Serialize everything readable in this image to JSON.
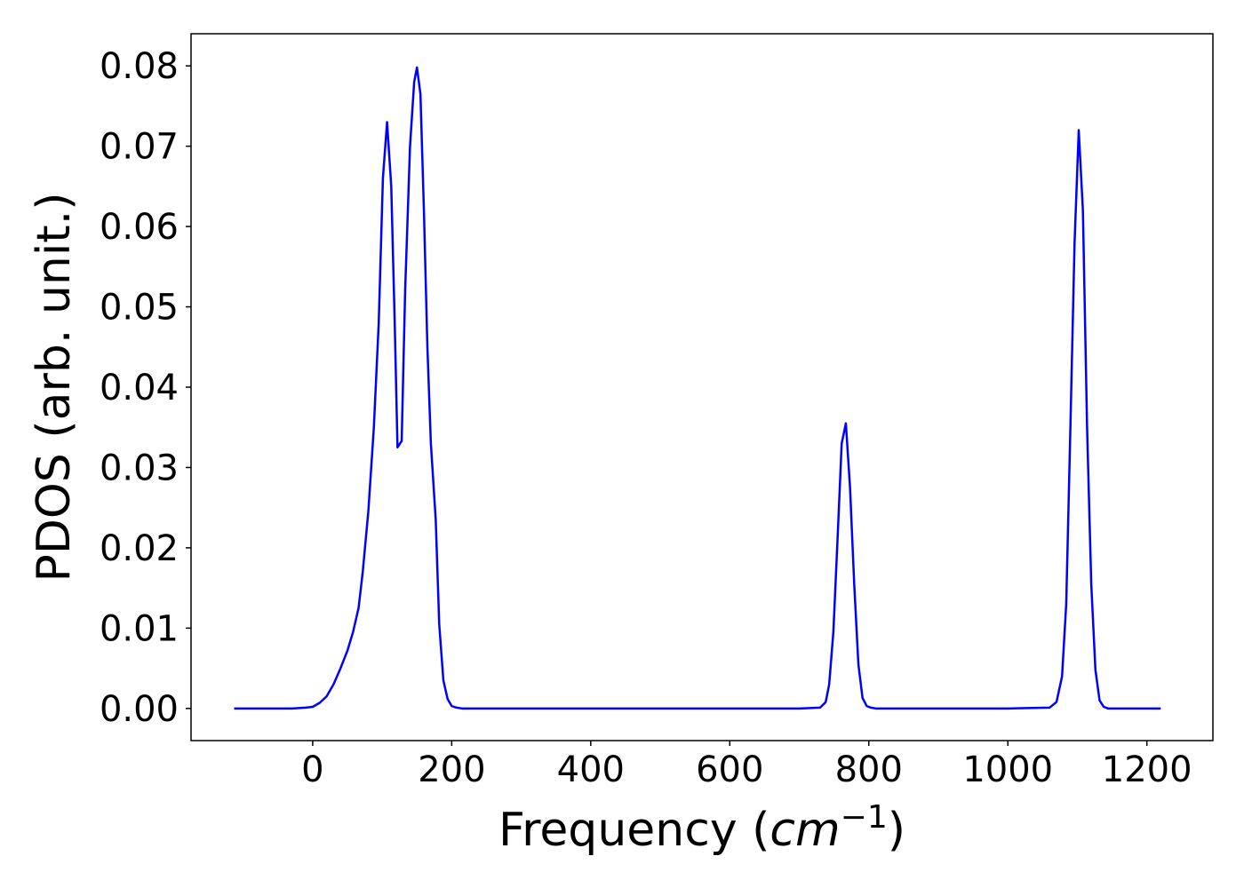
{
  "chart_data": {
    "type": "line",
    "title": "",
    "xlabel": "Frequency (cm⁻¹)",
    "xlabel_parts": {
      "prefix": "Frequency (",
      "unit": "cm",
      "exponent": "−1",
      "suffix": ")"
    },
    "ylabel": "PDOS (arb. unit.)",
    "xlim": [
      -175,
      1295
    ],
    "ylim": [
      -0.004,
      0.084
    ],
    "xticks": [
      0,
      200,
      400,
      600,
      800,
      1000,
      1200
    ],
    "xtick_labels": [
      "0",
      "200",
      "400",
      "600",
      "800",
      "1000",
      "1200"
    ],
    "yticks": [
      0.0,
      0.01,
      0.02,
      0.03,
      0.04,
      0.05,
      0.06,
      0.07,
      0.08
    ],
    "ytick_labels": [
      "0.00",
      "0.01",
      "0.02",
      "0.03",
      "0.04",
      "0.05",
      "0.06",
      "0.07",
      "0.08"
    ],
    "grid": false,
    "series": [
      {
        "color": "#0000ff",
        "x": [
          -113,
          -90,
          -60,
          -30,
          -10,
          0,
          10,
          20,
          30,
          40,
          50,
          58,
          66,
          72,
          80,
          88,
          95,
          101,
          107,
          113,
          118,
          122,
          128,
          133,
          140,
          146,
          150,
          155,
          160,
          165,
          170,
          177,
          182,
          188,
          194,
          200,
          207,
          215,
          230,
          300,
          400,
          500,
          600,
          700,
          730,
          738,
          743,
          749,
          755,
          761,
          767,
          773,
          779,
          785,
          791,
          797,
          803,
          810,
          820,
          850,
          900,
          1000,
          1060,
          1070,
          1078,
          1084,
          1090,
          1096,
          1102,
          1108,
          1114,
          1120,
          1126,
          1132,
          1138,
          1144,
          1150,
          1160,
          1180,
          1220
        ],
        "values": [
          0.0,
          0.0,
          0.0,
          0.0,
          0.0001,
          0.0002,
          0.0007,
          0.0015,
          0.003,
          0.005,
          0.0072,
          0.0095,
          0.0125,
          0.017,
          0.0245,
          0.035,
          0.048,
          0.066,
          0.073,
          0.065,
          0.048,
          0.0325,
          0.0333,
          0.052,
          0.07,
          0.078,
          0.0798,
          0.0765,
          0.062,
          0.045,
          0.033,
          0.0235,
          0.0105,
          0.0035,
          0.0012,
          0.0003,
          0.0001,
          0.0,
          0.0,
          0.0,
          0.0,
          0.0,
          0.0,
          0.0,
          0.0001,
          0.0008,
          0.003,
          0.0095,
          0.021,
          0.033,
          0.0355,
          0.0275,
          0.0155,
          0.0055,
          0.0013,
          0.0003,
          0.0001,
          0.0,
          0.0,
          0.0,
          0.0,
          0.0,
          0.0001,
          0.0008,
          0.004,
          0.013,
          0.035,
          0.058,
          0.072,
          0.062,
          0.035,
          0.0155,
          0.0048,
          0.001,
          0.0002,
          0.0,
          0.0,
          0.0,
          0.0,
          0.0
        ]
      }
    ]
  }
}
